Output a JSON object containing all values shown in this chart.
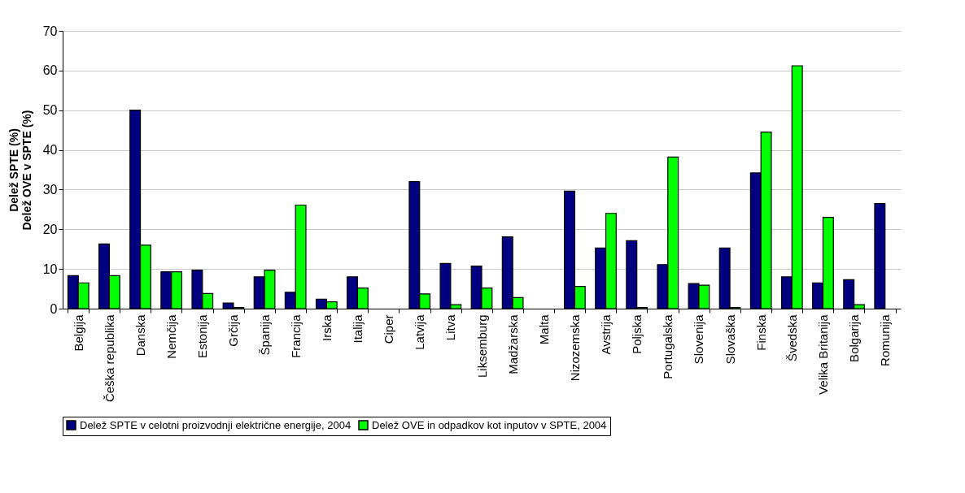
{
  "chart_data": {
    "type": "bar",
    "ylabel": "Delež SPTE (%)\nDelež OVE v SPTE (%)",
    "categories": [
      "Belgija",
      "Češka republika",
      "Danska",
      "Nemčija",
      "Estonija",
      "Grčija",
      "Španija",
      "Francija",
      "Irska",
      "Italija",
      "Ciper",
      "Latvija",
      "Litva",
      "Liksemburg",
      "Madžarska",
      "Malta",
      "Nizozemska",
      "Avstrija",
      "Poljska",
      "Portugalska",
      "Slovenija",
      "Slovaška",
      "Finska",
      "Švedska",
      "Velika Britanija",
      "Bolgarija",
      "Romunija"
    ],
    "series": [
      {
        "name": "Delež SPTE v celotni proizvodnji električne energije, 2004",
        "color": "#000080",
        "values": [
          8.3,
          16.3,
          50,
          9.3,
          9.7,
          1.4,
          8,
          4.1,
          2.4,
          8,
          null,
          32,
          11.4,
          10.7,
          18.1,
          null,
          29.6,
          15.3,
          17.1,
          11.1,
          6.3,
          15.3,
          34.2,
          8,
          6.5,
          7.3,
          26.5
        ]
      },
      {
        "name": "Delež OVE in odpadkov kot inputov v SPTE, 2004",
        "color": "#00ff00",
        "values": [
          6.5,
          8.3,
          16,
          9.3,
          3.8,
          0.3,
          9.7,
          26.1,
          1.7,
          5.2,
          null,
          3.7,
          1,
          5.2,
          2.8,
          null,
          5.6,
          24,
          0.3,
          38.2,
          5.9,
          0.3,
          44.5,
          61.2,
          23,
          1,
          null
        ]
      }
    ],
    "ylim": [
      0,
      70
    ],
    "yticks": [
      0,
      10,
      20,
      30,
      40,
      50,
      60,
      70
    ],
    "grid": "y",
    "legend": "bottom"
  }
}
